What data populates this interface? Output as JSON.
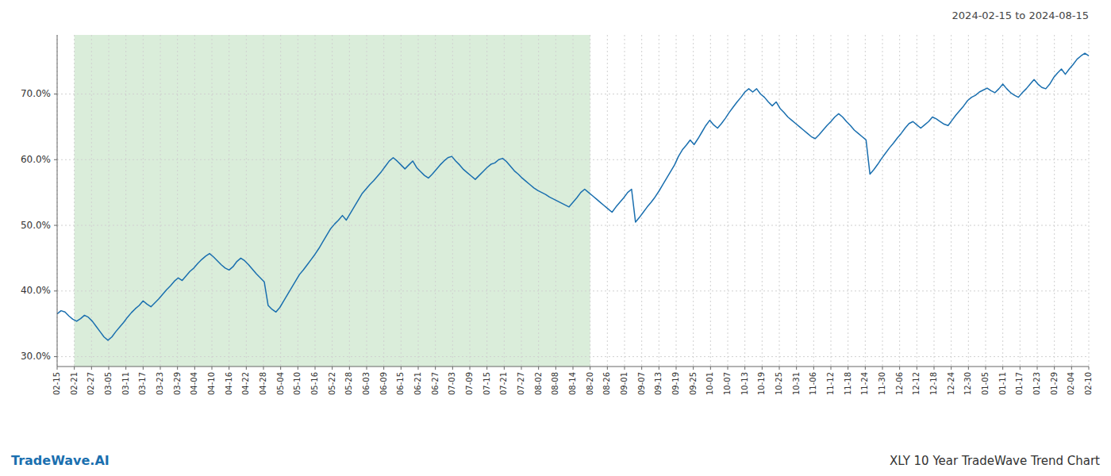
{
  "chart_data": {
    "type": "line",
    "title": "XLY 10 Year TradeWave Trend Chart",
    "subtitle": "2024-02-15 to 2024-08-15",
    "annotations": [
      "TradeWave.AI"
    ],
    "color": "#1a6faf",
    "grid": true,
    "xlim": [
      0,
      264
    ],
    "ylim": [
      28.5,
      79.0
    ],
    "yticks": [
      {
        "value": 30.0,
        "label": "30.0%"
      },
      {
        "value": 40.0,
        "label": "40.0%"
      },
      {
        "value": 50.0,
        "label": "50.0%"
      },
      {
        "value": 60.0,
        "label": "60.0%"
      },
      {
        "value": 70.0,
        "label": "70.0%"
      }
    ],
    "xticks": [
      {
        "value": 0,
        "label": "02-15"
      },
      {
        "value": 4.4,
        "label": "02-21"
      },
      {
        "value": 8.8,
        "label": "02-27"
      },
      {
        "value": 13.2,
        "label": "03-05"
      },
      {
        "value": 17.6,
        "label": "03-11"
      },
      {
        "value": 22,
        "label": "03-17"
      },
      {
        "value": 26.4,
        "label": "03-23"
      },
      {
        "value": 30.8,
        "label": "03-29"
      },
      {
        "value": 35.2,
        "label": "04-04"
      },
      {
        "value": 39.6,
        "label": "04-10"
      },
      {
        "value": 44,
        "label": "04-16"
      },
      {
        "value": 48.4,
        "label": "04-22"
      },
      {
        "value": 52.8,
        "label": "04-28"
      },
      {
        "value": 57.2,
        "label": "05-04"
      },
      {
        "value": 61.6,
        "label": "05-10"
      },
      {
        "value": 66,
        "label": "05-16"
      },
      {
        "value": 70.4,
        "label": "05-22"
      },
      {
        "value": 74.8,
        "label": "05-28"
      },
      {
        "value": 79.2,
        "label": "06-03"
      },
      {
        "value": 83.6,
        "label": "06-09"
      },
      {
        "value": 88,
        "label": "06-15"
      },
      {
        "value": 92.4,
        "label": "06-21"
      },
      {
        "value": 96.8,
        "label": "06-27"
      },
      {
        "value": 101.2,
        "label": "07-03"
      },
      {
        "value": 105.6,
        "label": "07-09"
      },
      {
        "value": 110,
        "label": "07-15"
      },
      {
        "value": 114.4,
        "label": "07-21"
      },
      {
        "value": 118.8,
        "label": "07-27"
      },
      {
        "value": 123.2,
        "label": "08-02"
      },
      {
        "value": 127.6,
        "label": "08-08"
      },
      {
        "value": 132,
        "label": "08-14"
      },
      {
        "value": 136.4,
        "label": "08-20"
      },
      {
        "value": 140.8,
        "label": "08-26"
      },
      {
        "value": 145.2,
        "label": "09-01"
      },
      {
        "value": 149.6,
        "label": "09-07"
      },
      {
        "value": 154,
        "label": "09-13"
      },
      {
        "value": 158.4,
        "label": "09-19"
      },
      {
        "value": 162.8,
        "label": "09-25"
      },
      {
        "value": 167.2,
        "label": "10-01"
      },
      {
        "value": 171.6,
        "label": "10-07"
      },
      {
        "value": 176,
        "label": "10-13"
      },
      {
        "value": 180.4,
        "label": "10-19"
      },
      {
        "value": 184.8,
        "label": "10-25"
      },
      {
        "value": 189.2,
        "label": "10-31"
      },
      {
        "value": 193.6,
        "label": "11-06"
      },
      {
        "value": 198,
        "label": "11-12"
      },
      {
        "value": 202.4,
        "label": "11-18"
      },
      {
        "value": 206.8,
        "label": "11-24"
      },
      {
        "value": 211.2,
        "label": "11-30"
      },
      {
        "value": 215.6,
        "label": "12-06"
      },
      {
        "value": 220,
        "label": "12-12"
      },
      {
        "value": 224.4,
        "label": "12-18"
      },
      {
        "value": 228.8,
        "label": "12-24"
      },
      {
        "value": 233.2,
        "label": "12-30"
      },
      {
        "value": 237.6,
        "label": "01-05"
      },
      {
        "value": 242,
        "label": "01-11"
      },
      {
        "value": 246.4,
        "label": "01-17"
      },
      {
        "value": 250.8,
        "label": "01-23"
      },
      {
        "value": 255.2,
        "label": "01-29"
      },
      {
        "value": 259.6,
        "label": "02-04"
      },
      {
        "value": 264,
        "label": "02-10"
      }
    ],
    "bands": [
      {
        "from": 4.4,
        "to": 136.4,
        "color": "#d4ead4"
      }
    ],
    "x": [
      0,
      1,
      2,
      3,
      4,
      5,
      6,
      7,
      8,
      9,
      10,
      11,
      12,
      13,
      14,
      15,
      16,
      17,
      18,
      19,
      20,
      21,
      22,
      23,
      24,
      25,
      26,
      27,
      28,
      29,
      30,
      31,
      32,
      33,
      34,
      35,
      36,
      37,
      38,
      39,
      40,
      41,
      42,
      43,
      44,
      45,
      46,
      47,
      48,
      49,
      50,
      51,
      52,
      53,
      54,
      55,
      56,
      57,
      58,
      59,
      60,
      61,
      62,
      63,
      64,
      65,
      66,
      67,
      68,
      69,
      70,
      71,
      72,
      73,
      74,
      75,
      76,
      77,
      78,
      79,
      80,
      81,
      82,
      83,
      84,
      85,
      86,
      87,
      88,
      89,
      90,
      91,
      92,
      93,
      94,
      95,
      96,
      97,
      98,
      99,
      100,
      101,
      102,
      103,
      104,
      105,
      106,
      107,
      108,
      109,
      110,
      111,
      112,
      113,
      114,
      115,
      116,
      117,
      118,
      119,
      120,
      121,
      122,
      123,
      124,
      125,
      126,
      127,
      128,
      129,
      130,
      131,
      132,
      133,
      134,
      135,
      136,
      137,
      138,
      139,
      140,
      141,
      142,
      143,
      144,
      145,
      146,
      147,
      148,
      149,
      150,
      151,
      152,
      153,
      154,
      155,
      156,
      157,
      158,
      159,
      160,
      161,
      162,
      163,
      164,
      165,
      166,
      167,
      168,
      169,
      170,
      171,
      172,
      173,
      174,
      175,
      176,
      177,
      178,
      179,
      180,
      181,
      182,
      183,
      184,
      185,
      186,
      187,
      188,
      189,
      190,
      191,
      192,
      193,
      194,
      195,
      196,
      197,
      198,
      199,
      200,
      201,
      202,
      203,
      204,
      205,
      206,
      207,
      208,
      209,
      210,
      211,
      212,
      213,
      214,
      215,
      216,
      217,
      218,
      219,
      220,
      221,
      222,
      223,
      224,
      225,
      226,
      227,
      228,
      229,
      230,
      231,
      232,
      233,
      234,
      235,
      236,
      237,
      238,
      239,
      240,
      241,
      242,
      243,
      244,
      245,
      246,
      247,
      248,
      249,
      250,
      251,
      252,
      253,
      254,
      255,
      256,
      257,
      258,
      259,
      260,
      261,
      262,
      263,
      264
    ],
    "values": [
      36.5,
      37.0,
      36.8,
      36.2,
      35.7,
      35.4,
      35.8,
      36.3,
      36.0,
      35.4,
      34.6,
      33.8,
      33.0,
      32.5,
      33.0,
      33.8,
      34.5,
      35.2,
      36.0,
      36.7,
      37.3,
      37.8,
      38.5,
      38.0,
      37.6,
      38.2,
      38.8,
      39.5,
      40.2,
      40.8,
      41.5,
      42.0,
      41.6,
      42.3,
      43.0,
      43.5,
      44.2,
      44.8,
      45.3,
      45.7,
      45.2,
      44.6,
      44.0,
      43.5,
      43.2,
      43.7,
      44.5,
      45.0,
      44.6,
      44.0,
      43.3,
      42.6,
      42.0,
      41.4,
      37.8,
      37.2,
      36.8,
      37.5,
      38.5,
      39.5,
      40.5,
      41.5,
      42.5,
      43.2,
      44.0,
      44.8,
      45.6,
      46.5,
      47.5,
      48.5,
      49.5,
      50.2,
      50.8,
      51.5,
      50.8,
      51.8,
      52.8,
      53.8,
      54.8,
      55.5,
      56.2,
      56.8,
      57.5,
      58.2,
      59.0,
      59.8,
      60.3,
      59.8,
      59.2,
      58.6,
      59.2,
      59.8,
      58.8,
      58.2,
      57.6,
      57.2,
      57.8,
      58.5,
      59.2,
      59.8,
      60.3,
      60.5,
      59.8,
      59.2,
      58.5,
      58.0,
      57.5,
      57.0,
      57.6,
      58.2,
      58.8,
      59.3,
      59.5,
      60.0,
      60.2,
      59.7,
      59.0,
      58.3,
      57.8,
      57.2,
      56.7,
      56.2,
      55.7,
      55.3,
      55.0,
      54.7,
      54.3,
      54.0,
      53.7,
      53.4,
      53.1,
      52.8,
      53.5,
      54.2,
      55.0,
      55.5,
      55.0,
      54.5,
      54.0,
      53.5,
      53.0,
      52.5,
      52.0,
      52.8,
      53.5,
      54.2,
      55.0,
      55.5,
      50.5,
      51.2,
      52.0,
      52.8,
      53.5,
      54.3,
      55.2,
      56.2,
      57.2,
      58.2,
      59.2,
      60.5,
      61.5,
      62.2,
      63.0,
      62.3,
      63.2,
      64.2,
      65.2,
      66.0,
      65.3,
      64.8,
      65.5,
      66.3,
      67.2,
      68.0,
      68.8,
      69.5,
      70.3,
      70.8,
      70.3,
      70.8,
      70.0,
      69.5,
      68.8,
      68.2,
      68.8,
      67.8,
      67.2,
      66.5,
      66.0,
      65.5,
      65.0,
      64.5,
      64.0,
      63.5,
      63.2,
      63.8,
      64.5,
      65.2,
      65.8,
      66.5,
      67.0,
      66.5,
      65.8,
      65.2,
      64.5,
      64.0,
      63.5,
      63.0,
      57.8,
      58.5,
      59.3,
      60.2,
      61.0,
      61.8,
      62.5,
      63.3,
      64.0,
      64.8,
      65.5,
      65.8,
      65.3,
      64.8,
      65.3,
      65.8,
      66.5,
      66.2,
      65.8,
      65.4,
      65.2,
      66.0,
      66.8,
      67.5,
      68.2,
      69.0,
      69.5,
      69.8,
      70.3,
      70.6,
      70.9,
      70.5,
      70.2,
      70.8,
      71.5,
      70.8,
      70.2,
      69.8,
      69.5,
      70.2,
      70.8,
      71.5,
      72.2,
      71.5,
      71.0,
      70.8,
      71.5,
      72.5,
      73.2,
      73.8,
      73.0,
      73.8,
      74.5,
      75.3,
      75.8,
      76.2,
      75.8
    ]
  }
}
